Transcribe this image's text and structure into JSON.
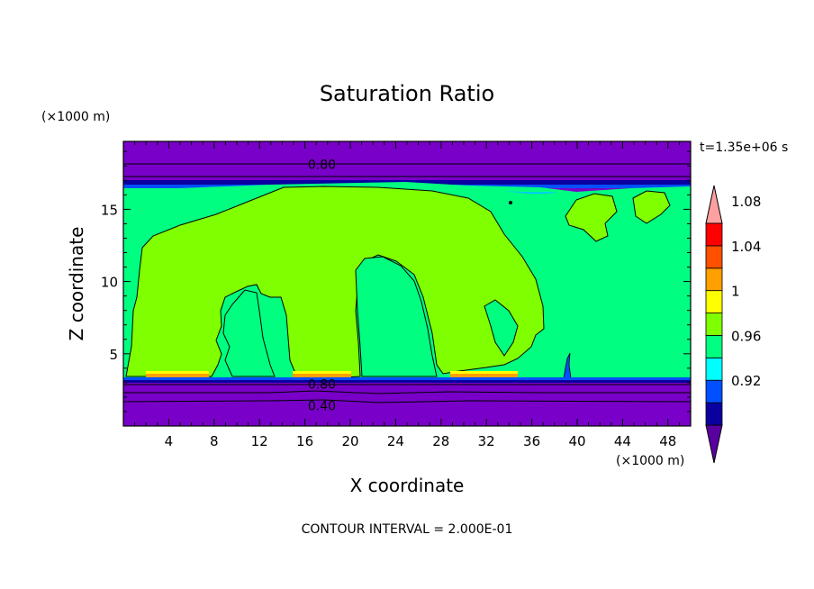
{
  "chart_data": {
    "type": "heatmap",
    "title": "Saturation Ratio",
    "xlabel": "X coordinate",
    "ylabel": "Z coordinate",
    "x_unit": "(×1000 m)",
    "y_unit": "(×1000 m)",
    "xlim": [
      0,
      50
    ],
    "ylim": [
      0,
      19.7
    ],
    "x_ticks": [
      4,
      8,
      12,
      16,
      20,
      24,
      28,
      32,
      36,
      40,
      44,
      48
    ],
    "y_ticks": [
      5,
      10,
      15
    ],
    "time_label": "t=1.35e+06 s",
    "footer": "CONTOUR INTERVAL = 2.000E-01",
    "contour_labels": [
      {
        "text": "0.80",
        "x": 17.5,
        "z": 18.1
      },
      {
        "text": "0.80",
        "x": 17.5,
        "z": 2.9
      },
      {
        "text": "0.40",
        "x": 17.5,
        "z": 1.4
      }
    ],
    "colorbar": {
      "levels": [
        "0.92",
        "0.96",
        "1",
        "1.04",
        "1.08"
      ],
      "colors": [
        "#5a00a0",
        "#0a00a0",
        "#0050ff",
        "#00ffff",
        "#00ff80",
        "#80ff00",
        "#ffff00",
        "#ffa000",
        "#ff5000",
        "#ff0000",
        "#ffa0a0"
      ],
      "extend": "both"
    },
    "colors": {
      "below_0_92": "#7800c8",
      "band_0_96": "#0040ff",
      "band_1": "#00ff80",
      "band_1_04": "#80ff00",
      "band_1_08": "#ffa000"
    }
  }
}
